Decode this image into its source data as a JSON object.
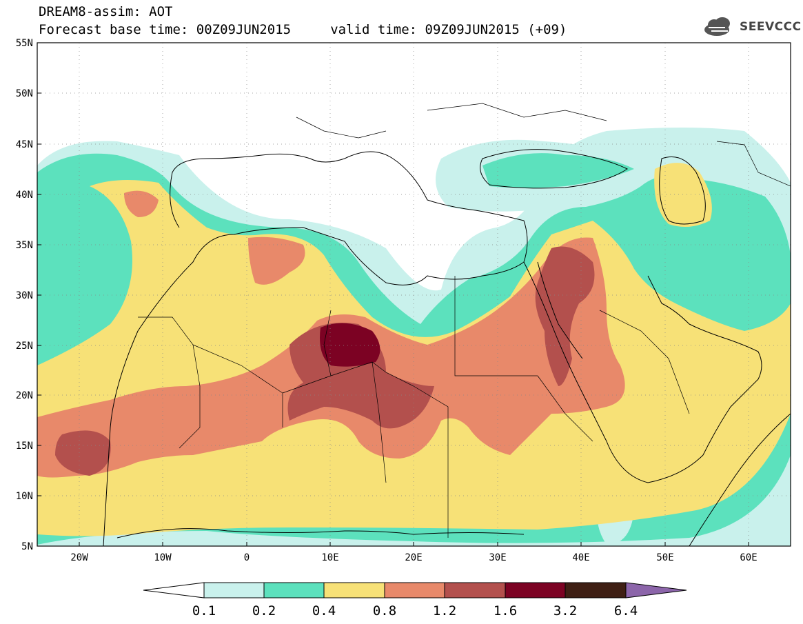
{
  "header": {
    "title_line1": "DREAM8-assim: AOT",
    "title_line2": "Forecast base time: 00Z09JUN2015     valid time: 09Z09JUN2015 (+09)",
    "logo_text": "SEEVCCC"
  },
  "map": {
    "lat_labels": [
      "55N",
      "50N",
      "45N",
      "40N",
      "35N",
      "30N",
      "25N",
      "20N",
      "15N",
      "10N",
      "5N"
    ],
    "lon_labels": [
      "20W",
      "10W",
      "0",
      "10E",
      "20E",
      "30E",
      "40E",
      "50E",
      "60E"
    ],
    "extent": {
      "lon": [
        -25,
        65
      ],
      "lat": [
        5,
        55
      ]
    }
  },
  "legend": {
    "levels": [
      "0.1",
      "0.2",
      "0.4",
      "0.8",
      "1.2",
      "1.6",
      "3.2",
      "6.4"
    ],
    "colors": {
      "below_min": "#ffffff",
      "c1": "#c9f1ec",
      "c2": "#5ce1bd",
      "c3": "#f7e177",
      "c4": "#e8896a",
      "c5": "#b3504d",
      "c6": "#7c0223",
      "c7": "#3f1f14",
      "above_max": "#8c65aa"
    }
  }
}
